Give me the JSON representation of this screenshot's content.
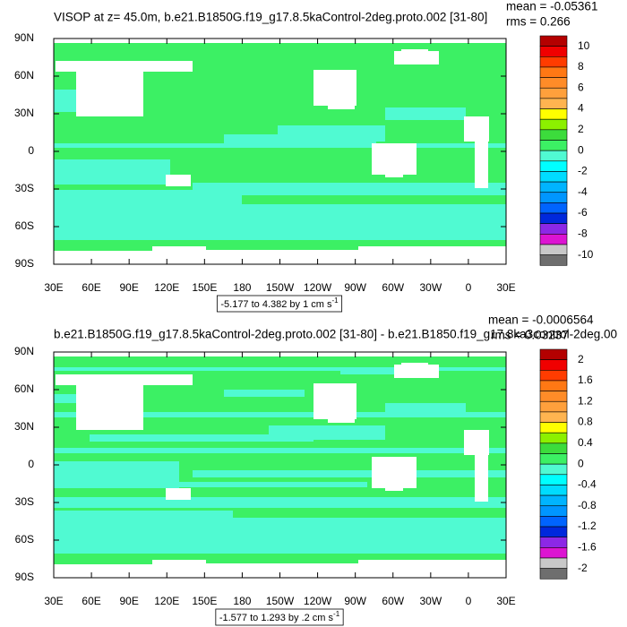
{
  "panels": [
    {
      "title": "VISOP at z=  45.0m, b.e21.B1850G.f19_g17.8.5kaControl-2deg.proto.002 [31-80]",
      "mean": "mean = -0.05361",
      "rms": "rms = 0.266",
      "x_labels": [
        "30E",
        "60E",
        "90E",
        "120E",
        "150E",
        "180",
        "150W",
        "120W",
        "90W",
        "60W",
        "30W",
        "0",
        "30E"
      ],
      "y_labels": [
        "90N",
        "60N",
        "30N",
        "0",
        "30S",
        "60S",
        "90S"
      ],
      "colorbar": {
        "colors": [
          "#b40000",
          "#f00000",
          "#ff3c00",
          "#ff7814",
          "#ff8c28",
          "#ffa03c",
          "#ffb450",
          "#ffff00",
          "#8cf000",
          "#3cdc3c",
          "#3cf064",
          "#50fad2",
          "#00ffff",
          "#00dcff",
          "#00b4ff",
          "#0096ff",
          "#0064ff",
          "#0028dc",
          "#8c28e6",
          "#dc14d2",
          "#c8c8c8",
          "#6e6e6e"
        ],
        "labels": [
          10,
          8,
          6,
          4,
          2,
          0,
          -2,
          -4,
          -6,
          -8,
          -10
        ]
      },
      "info": {
        "text": "-5.177 to 4.382 by 1 cm s",
        "superscript": "-1"
      }
    },
    {
      "title": "b.e21.B1850G.f19_g17.8.5kaControl-2deg.proto.002 [31-80] - b.e21.B1850.f19_g17.8ka3control-2deg.00",
      "mean": "mean = -0.0006564",
      "rms": "rms = 0.03237",
      "x_labels": [
        "30E",
        "60E",
        "90E",
        "120E",
        "150E",
        "180",
        "150W",
        "120W",
        "90W",
        "60W",
        "30W",
        "0",
        "30E"
      ],
      "y_labels": [
        "90N",
        "60N",
        "30N",
        "0",
        "30S",
        "60S",
        "90S"
      ],
      "colorbar": {
        "colors": [
          "#b40000",
          "#f00000",
          "#ff3c00",
          "#ff7814",
          "#ff8c28",
          "#ffa03c",
          "#ffb450",
          "#ffff00",
          "#8cf000",
          "#3cdc3c",
          "#3cf064",
          "#50fad2",
          "#00ffff",
          "#00dcff",
          "#00b4ff",
          "#0096ff",
          "#0064ff",
          "#0028dc",
          "#8c28e6",
          "#dc14d2",
          "#c8c8c8",
          "#6e6e6e"
        ],
        "labels": [
          2,
          1.6,
          1.2,
          0.8,
          0.4,
          0,
          -0.4,
          -0.8,
          -1.2,
          -1.6,
          -2
        ]
      },
      "info": {
        "text": "-1.577 to 1.293 by .2 cm s",
        "superscript": "-1"
      }
    }
  ]
}
